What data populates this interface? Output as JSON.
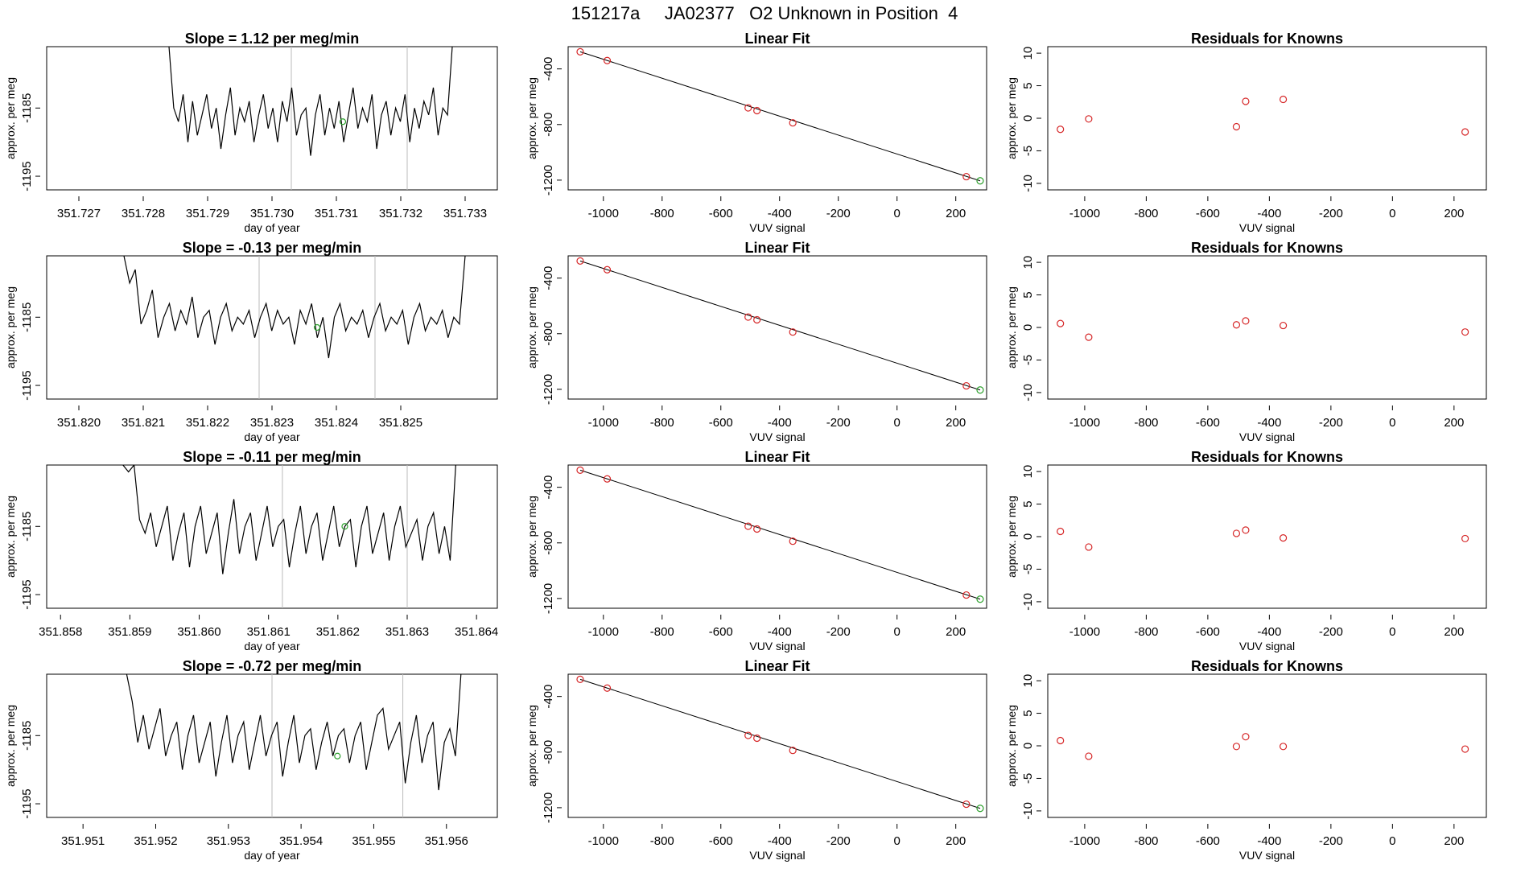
{
  "header": {
    "title": "151217a     JA02377   O2 Unknown in Position  4"
  },
  "colors": {
    "line": "#000000",
    "known_points": "#d62728",
    "unknown_point": "#2ca02c",
    "marker_lines": "#bbbbbb"
  },
  "chart_data": [
    {
      "type": "line",
      "panel": "timeseries",
      "row": 1,
      "title": "Slope =  1.12  per meg/min",
      "xlabel": "day of year",
      "ylabel": "approx. per meg",
      "xlim": [
        351.7265,
        351.7335
      ],
      "ylim": [
        -1197,
        -1176
      ],
      "xticks": [
        351.727,
        351.728,
        351.729,
        351.73,
        351.731,
        351.732,
        351.733
      ],
      "xtick_labels": [
        "351.727",
        "351.728",
        "351.729",
        "351.730",
        "351.731",
        "351.732",
        "351.733"
      ],
      "yticks": [
        -1185,
        -1195
      ],
      "ytick_labels": [
        "-1185",
        "-1195"
      ],
      "x_start": 351.7284,
      "x_end": 351.7328,
      "y_values": [
        -1176,
        -1185,
        -1187,
        -1183,
        -1190,
        -1184,
        -1189,
        -1186,
        -1183,
        -1188,
        -1185,
        -1191,
        -1186,
        -1182,
        -1189,
        -1185,
        -1187,
        -1184,
        -1190,
        -1186,
        -1183,
        -1188,
        -1185,
        -1190,
        -1184,
        -1187,
        -1182,
        -1189,
        -1186,
        -1185,
        -1192,
        -1186,
        -1183,
        -1189,
        -1185,
        -1188,
        -1184,
        -1190,
        -1186,
        -1182,
        -1188,
        -1185,
        -1187,
        -1183,
        -1191,
        -1186,
        -1184,
        -1189,
        -1185,
        -1187,
        -1183,
        -1190,
        -1185,
        -1188,
        -1184,
        -1186,
        -1182,
        -1189,
        -1185,
        -1186,
        -1176
      ],
      "unknown_point": {
        "x": 351.7311,
        "y": -1187
      },
      "vertical_lines": [
        351.7303,
        351.7321
      ]
    },
    {
      "type": "scatter",
      "panel": "linear_fit",
      "row": 1,
      "title": "Linear Fit",
      "xlabel": "VUV signal",
      "ylabel": "approx. per meg",
      "xlim": [
        -1120,
        305
      ],
      "ylim": [
        -1270,
        -240
      ],
      "xticks": [
        -1000,
        -800,
        -600,
        -400,
        -200,
        0,
        200
      ],
      "xtick_labels": [
        "-1000",
        "-800",
        "-600",
        "-400",
        "-200",
        "0",
        "200"
      ],
      "yticks": [
        -400,
        -800,
        -1200
      ],
      "ytick_labels": [
        "-400",
        "-800",
        "-1200"
      ],
      "known": {
        "x": [
          -1079,
          -987,
          -507,
          -477,
          -355,
          236
        ],
        "y": [
          -277,
          -340,
          -680,
          -700,
          -788,
          -1175
        ]
      },
      "unknown": {
        "x": [
          283
        ],
        "y": [
          -1205
        ]
      },
      "fit_line": {
        "x": [
          -1079,
          283
        ],
        "y": [
          -277,
          -1205
        ]
      }
    },
    {
      "type": "scatter",
      "panel": "residuals",
      "row": 1,
      "title": "Residuals for Knowns",
      "xlabel": "VUV signal",
      "ylabel": "approx. per meg",
      "xlim": [
        -1120,
        305
      ],
      "ylim": [
        -11,
        11
      ],
      "xticks": [
        -1000,
        -800,
        -600,
        -400,
        -200,
        0,
        200
      ],
      "xtick_labels": [
        "-1000",
        "-800",
        "-600",
        "-400",
        "-200",
        "0",
        "200"
      ],
      "yticks": [
        10,
        5,
        0,
        -5,
        -10
      ],
      "ytick_labels": [
        "10",
        "5",
        "0",
        "-5",
        "-10"
      ],
      "x": [
        -1079,
        -987,
        -507,
        -477,
        -355,
        236
      ],
      "y": [
        -1.7,
        -0.1,
        -1.3,
        2.6,
        2.9,
        -2.1
      ]
    },
    {
      "type": "line",
      "panel": "timeseries",
      "row": 2,
      "title": "Slope =  -0.13  per meg/min",
      "xlabel": "day of year",
      "ylabel": "approx. per meg",
      "xlim": [
        351.8195,
        351.8265
      ],
      "ylim": [
        -1197,
        -1176
      ],
      "xticks": [
        351.82,
        351.821,
        351.822,
        351.823,
        351.824,
        351.825
      ],
      "xtick_labels": [
        "351.820",
        "351.821",
        "351.822",
        "351.823",
        "351.824",
        "351.825"
      ],
      "yticks": [
        -1185,
        -1195
      ],
      "ytick_labels": [
        "-1185",
        "-1195"
      ],
      "x_start": 351.8207,
      "x_end": 351.826,
      "y_values": [
        -1176,
        -1180,
        -1178,
        -1186,
        -1184,
        -1181,
        -1188,
        -1185,
        -1183,
        -1187,
        -1184,
        -1186,
        -1182,
        -1188,
        -1185,
        -1184,
        -1189,
        -1185,
        -1183,
        -1187,
        -1185,
        -1186,
        -1184,
        -1188,
        -1185,
        -1183,
        -1187,
        -1184,
        -1186,
        -1185,
        -1189,
        -1184,
        -1186,
        -1183,
        -1188,
        -1185,
        -1191,
        -1185,
        -1183,
        -1187,
        -1185,
        -1186,
        -1184,
        -1188,
        -1185,
        -1183,
        -1187,
        -1185,
        -1186,
        -1184,
        -1189,
        -1185,
        -1183,
        -1187,
        -1185,
        -1186,
        -1184,
        -1188,
        -1185,
        -1186,
        -1176
      ],
      "unknown_point": {
        "x": 351.8237,
        "y": -1186.5
      },
      "vertical_lines": [
        351.8228,
        351.8246
      ]
    },
    {
      "type": "scatter",
      "panel": "linear_fit",
      "row": 2,
      "title": "Linear Fit",
      "xlabel": "VUV signal",
      "ylabel": "approx. per meg",
      "xlim": [
        -1120,
        305
      ],
      "ylim": [
        -1270,
        -240
      ],
      "xticks": [
        -1000,
        -800,
        -600,
        -400,
        -200,
        0,
        200
      ],
      "xtick_labels": [
        "-1000",
        "-800",
        "-600",
        "-400",
        "-200",
        "0",
        "200"
      ],
      "yticks": [
        -400,
        -800,
        -1200
      ],
      "ytick_labels": [
        "-400",
        "-800",
        "-1200"
      ],
      "known": {
        "x": [
          -1079,
          -987,
          -507,
          -477,
          -355,
          236
        ],
        "y": [
          -277,
          -340,
          -680,
          -700,
          -788,
          -1175
        ]
      },
      "unknown": {
        "x": [
          283
        ],
        "y": [
          -1205
        ]
      },
      "fit_line": {
        "x": [
          -1079,
          283
        ],
        "y": [
          -277,
          -1205
        ]
      }
    },
    {
      "type": "scatter",
      "panel": "residuals",
      "row": 2,
      "title": "Residuals for Knowns",
      "xlabel": "VUV signal",
      "ylabel": "approx. per meg",
      "xlim": [
        -1120,
        305
      ],
      "ylim": [
        -11,
        11
      ],
      "xticks": [
        -1000,
        -800,
        -600,
        -400,
        -200,
        0,
        200
      ],
      "xtick_labels": [
        "-1000",
        "-800",
        "-600",
        "-400",
        "-200",
        "0",
        "200"
      ],
      "yticks": [
        10,
        5,
        0,
        -5,
        -10
      ],
      "ytick_labels": [
        "10",
        "5",
        "0",
        "-5",
        "-10"
      ],
      "x": [
        -1079,
        -987,
        -507,
        -477,
        -355,
        236
      ],
      "y": [
        0.6,
        -1.5,
        0.4,
        1.0,
        0.3,
        -0.7
      ]
    },
    {
      "type": "line",
      "panel": "timeseries",
      "row": 3,
      "title": "Slope =  -0.11  per meg/min",
      "xlabel": "day of year",
      "ylabel": "approx. per meg",
      "xlim": [
        351.8578,
        351.8643
      ],
      "ylim": [
        -1197,
        -1176
      ],
      "xticks": [
        351.858,
        351.859,
        351.86,
        351.861,
        351.862,
        351.863,
        351.864
      ],
      "xtick_labels": [
        "351.858",
        "351.859",
        "351.860",
        "351.861",
        "351.862",
        "351.863",
        "351.864"
      ],
      "yticks": [
        -1185,
        -1195
      ],
      "ytick_labels": [
        "-1185",
        "-1195"
      ],
      "x_start": 351.8589,
      "x_end": 351.8637,
      "y_values": [
        -1176,
        -1177,
        -1176,
        -1184,
        -1186,
        -1183,
        -1188,
        -1185,
        -1182,
        -1190,
        -1186,
        -1183,
        -1191,
        -1185,
        -1182,
        -1189,
        -1186,
        -1183,
        -1192,
        -1186,
        -1181,
        -1189,
        -1185,
        -1183,
        -1190,
        -1186,
        -1182,
        -1188,
        -1185,
        -1184,
        -1191,
        -1186,
        -1182,
        -1189,
        -1185,
        -1183,
        -1190,
        -1186,
        -1182,
        -1188,
        -1185,
        -1184,
        -1191,
        -1185,
        -1182,
        -1189,
        -1186,
        -1183,
        -1190,
        -1185,
        -1182,
        -1188,
        -1186,
        -1184,
        -1190,
        -1185,
        -1183,
        -1189,
        -1185,
        -1190,
        -1176
      ],
      "unknown_point": {
        "x": 351.8621,
        "y": -1185
      },
      "vertical_lines": [
        351.8612,
        351.863
      ]
    },
    {
      "type": "scatter",
      "panel": "linear_fit",
      "row": 3,
      "title": "Linear Fit",
      "xlabel": "VUV signal",
      "ylabel": "approx. per meg",
      "xlim": [
        -1120,
        305
      ],
      "ylim": [
        -1270,
        -240
      ],
      "xticks": [
        -1000,
        -800,
        -600,
        -400,
        -200,
        0,
        200
      ],
      "xtick_labels": [
        "-1000",
        "-800",
        "-600",
        "-400",
        "-200",
        "0",
        "200"
      ],
      "yticks": [
        -400,
        -800,
        -1200
      ],
      "ytick_labels": [
        "-400",
        "-800",
        "-1200"
      ],
      "known": {
        "x": [
          -1079,
          -987,
          -507,
          -477,
          -355,
          236
        ],
        "y": [
          -277,
          -340,
          -680,
          -700,
          -788,
          -1175
        ]
      },
      "unknown": {
        "x": [
          283
        ],
        "y": [
          -1205
        ]
      },
      "fit_line": {
        "x": [
          -1079,
          283
        ],
        "y": [
          -277,
          -1205
        ]
      }
    },
    {
      "type": "scatter",
      "panel": "residuals",
      "row": 3,
      "title": "Residuals for Knowns",
      "xlabel": "VUV signal",
      "ylabel": "approx. per meg",
      "xlim": [
        -1120,
        305
      ],
      "ylim": [
        -11,
        11
      ],
      "xticks": [
        -1000,
        -800,
        -600,
        -400,
        -200,
        0,
        200
      ],
      "xtick_labels": [
        "-1000",
        "-800",
        "-600",
        "-400",
        "-200",
        "0",
        "200"
      ],
      "yticks": [
        10,
        5,
        0,
        -5,
        -10
      ],
      "ytick_labels": [
        "10",
        "5",
        "0",
        "-5",
        "-10"
      ],
      "x": [
        -1079,
        -987,
        -507,
        -477,
        -355,
        236
      ],
      "y": [
        0.8,
        -1.6,
        0.5,
        1.0,
        -0.2,
        -0.3
      ]
    },
    {
      "type": "line",
      "panel": "timeseries",
      "row": 4,
      "title": "Slope =  -0.72  per meg/min",
      "xlabel": "day of year",
      "ylabel": "approx. per meg",
      "xlim": [
        351.9505,
        351.9567
      ],
      "ylim": [
        -1197,
        -1176
      ],
      "xticks": [
        351.951,
        351.952,
        351.953,
        351.954,
        351.955,
        351.956
      ],
      "xtick_labels": [
        "351.951",
        "351.952",
        "351.953",
        "351.954",
        "351.955",
        "351.956"
      ],
      "yticks": [
        -1185,
        -1195
      ],
      "ytick_labels": [
        "-1185",
        "-1195"
      ],
      "x_start": 351.9516,
      "x_end": 351.9562,
      "y_values": [
        -1176,
        -1180,
        -1186,
        -1182,
        -1187,
        -1184,
        -1181,
        -1188,
        -1185,
        -1183,
        -1190,
        -1185,
        -1182,
        -1189,
        -1186,
        -1183,
        -1191,
        -1186,
        -1182,
        -1189,
        -1185,
        -1183,
        -1190,
        -1186,
        -1182,
        -1188,
        -1185,
        -1183,
        -1191,
        -1186,
        -1182,
        -1189,
        -1185,
        -1184,
        -1190,
        -1186,
        -1183,
        -1188,
        -1185,
        -1184,
        -1189,
        -1185,
        -1183,
        -1190,
        -1186,
        -1182,
        -1181,
        -1187,
        -1185,
        -1183,
        -1192,
        -1186,
        -1182,
        -1189,
        -1185,
        -1183,
        -1193,
        -1186,
        -1184,
        -1188,
        -1176
      ],
      "unknown_point": {
        "x": 351.9545,
        "y": -1188
      },
      "vertical_lines": [
        351.9536,
        351.9554
      ]
    },
    {
      "type": "scatter",
      "panel": "linear_fit",
      "row": 4,
      "title": "Linear Fit",
      "xlabel": "VUV signal",
      "ylabel": "approx. per meg",
      "xlim": [
        -1120,
        305
      ],
      "ylim": [
        -1270,
        -240
      ],
      "xticks": [
        -1000,
        -800,
        -600,
        -400,
        -200,
        0,
        200
      ],
      "xtick_labels": [
        "-1000",
        "-800",
        "-600",
        "-400",
        "-200",
        "0",
        "200"
      ],
      "yticks": [
        -400,
        -800,
        -1200
      ],
      "ytick_labels": [
        "-400",
        "-800",
        "-1200"
      ],
      "known": {
        "x": [
          -1079,
          -987,
          -507,
          -477,
          -355,
          236
        ],
        "y": [
          -277,
          -340,
          -680,
          -700,
          -788,
          -1175
        ]
      },
      "unknown": {
        "x": [
          283
        ],
        "y": [
          -1205
        ]
      },
      "fit_line": {
        "x": [
          -1079,
          283
        ],
        "y": [
          -277,
          -1205
        ]
      }
    },
    {
      "type": "scatter",
      "panel": "residuals",
      "row": 4,
      "title": "Residuals for Knowns",
      "xlabel": "VUV signal",
      "ylabel": "approx. per meg",
      "xlim": [
        -1120,
        305
      ],
      "ylim": [
        -11,
        11
      ],
      "xticks": [
        -1000,
        -800,
        -600,
        -400,
        -200,
        0,
        200
      ],
      "xtick_labels": [
        "-1000",
        "-800",
        "-600",
        "-400",
        "-200",
        "0",
        "200"
      ],
      "yticks": [
        10,
        5,
        0,
        -5,
        -10
      ],
      "ytick_labels": [
        "10",
        "5",
        "0",
        "-5",
        "-10"
      ],
      "x": [
        -1079,
        -987,
        -507,
        -477,
        -355,
        236
      ],
      "y": [
        0.8,
        -1.6,
        -0.1,
        1.4,
        -0.1,
        -0.5
      ]
    }
  ]
}
